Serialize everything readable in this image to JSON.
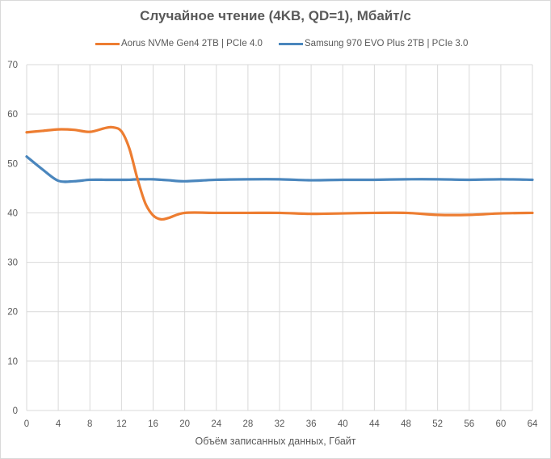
{
  "chart_data": {
    "type": "line",
    "title": "Случайное чтение (4KB, QD=1), Мбайт/с",
    "xlabel": "Объём записанных  данных,  Гбайт",
    "ylabel": "",
    "xlim": [
      0,
      64
    ],
    "ylim": [
      0,
      70
    ],
    "x_ticks": [
      0,
      4,
      8,
      12,
      16,
      20,
      24,
      28,
      32,
      36,
      40,
      44,
      48,
      52,
      56,
      60,
      64
    ],
    "y_ticks": [
      0,
      10,
      20,
      30,
      40,
      50,
      60,
      70
    ],
    "grid": true,
    "legend_position": "top",
    "x": [
      0,
      2,
      4,
      6,
      8,
      10,
      11,
      12,
      13,
      14,
      15,
      16,
      17,
      18,
      20,
      24,
      28,
      32,
      36,
      40,
      44,
      48,
      52,
      56,
      60,
      64
    ],
    "series": [
      {
        "name": "Aorus NVMe Gen4 2TB | PCIe 4.0",
        "color": "#ED7D31",
        "values": [
          56.3,
          56.6,
          56.9,
          56.8,
          56.4,
          57.2,
          57.3,
          56.5,
          53.0,
          47.0,
          42.0,
          39.5,
          38.7,
          39.0,
          40.0,
          40.0,
          40.0,
          40.0,
          39.8,
          39.9,
          40.0,
          40.0,
          39.6,
          39.6,
          39.9,
          40.0
        ]
      },
      {
        "name": "Samsung 970 EVO Plus 2TB | PCIe 3.0",
        "color": "#4A86BD",
        "values": [
          51.4,
          48.8,
          46.5,
          46.4,
          46.7,
          46.7,
          46.7,
          46.7,
          46.7,
          46.8,
          46.8,
          46.8,
          46.7,
          46.6,
          46.4,
          46.7,
          46.8,
          46.8,
          46.6,
          46.7,
          46.7,
          46.8,
          46.8,
          46.7,
          46.8,
          46.7
        ]
      }
    ]
  }
}
